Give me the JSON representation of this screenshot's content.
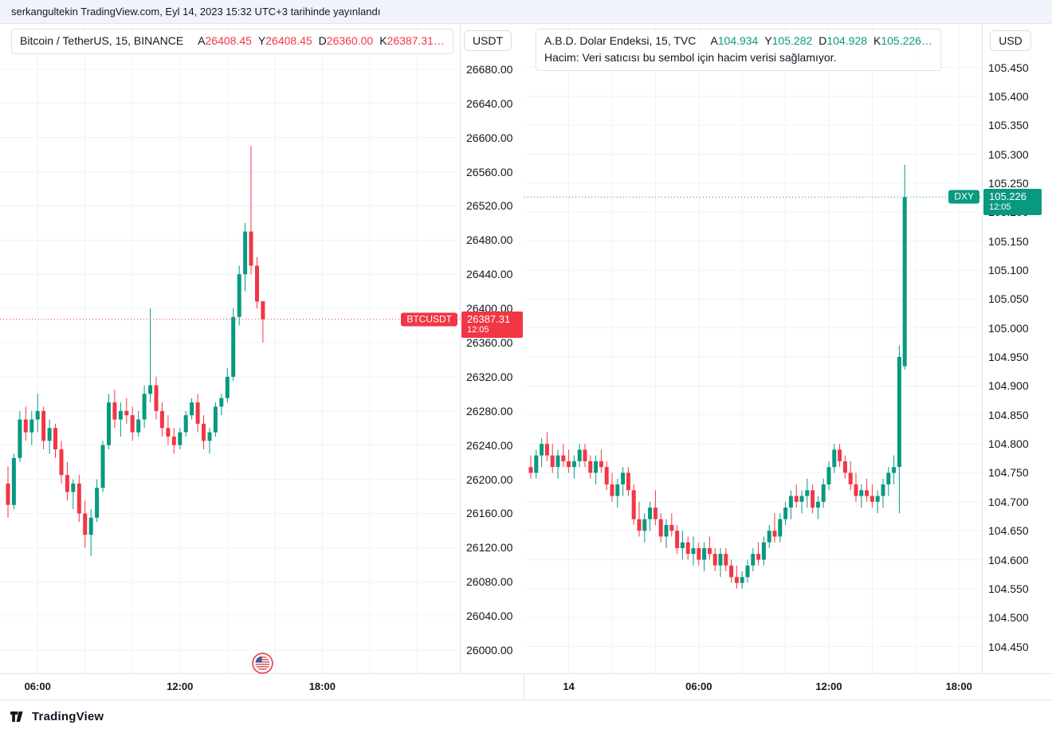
{
  "topbar": {
    "attribution": "serkangultekin TradingView.com, Eyl 14, 2023 15:32 UTC+3 tarihinde yayınlandı"
  },
  "footer": {
    "brand": "TradingView"
  },
  "chart_data": [
    {
      "type": "candlestick",
      "title": "Bitcoin / TetherUS, 15, BINANCE",
      "symbol": "BTCUSDT",
      "interval": "15",
      "exchange": "BINANCE",
      "currency": "USDT",
      "legend": {
        "open_label": "A",
        "open": "26408.45",
        "high_label": "Y",
        "high": "26408.45",
        "low_label": "D",
        "low": "26360.00",
        "close_label": "K",
        "close": "26387.31…"
      },
      "price_label": {
        "symbol": "BTCUSDT",
        "price": "26387.31",
        "time": "12:05"
      },
      "last_price": 26387.31,
      "colors": {
        "up": "#089981",
        "down": "#f23645",
        "accent": "#f23645"
      },
      "ylim": [
        25973,
        26733
      ],
      "grid": true,
      "y_ticks": [
        "26680.00",
        "26640.00",
        "26600.00",
        "26560.00",
        "26520.00",
        "26480.00",
        "26440.00",
        "26400.00",
        "26360.00",
        "26320.00",
        "26280.00",
        "26240.00",
        "26200.00",
        "26160.00",
        "26120.00",
        "26080.00",
        "26040.00",
        "26000.00"
      ],
      "x_ticks": [
        {
          "label": "06:00",
          "index": 5
        },
        {
          "label": "12:00",
          "index": 29
        },
        {
          "label": "18:00",
          "index": 53
        }
      ],
      "candles": [
        [
          26195,
          26215,
          26155,
          26170
        ],
        [
          26170,
          26230,
          26165,
          26225
        ],
        [
          26225,
          26280,
          26220,
          26270
        ],
        [
          26270,
          26285,
          26245,
          26255
        ],
        [
          26255,
          26280,
          26240,
          26270
        ],
        [
          26270,
          26300,
          26255,
          26280
        ],
        [
          26280,
          26285,
          26235,
          26245
        ],
        [
          26245,
          26270,
          26230,
          26260
        ],
        [
          26260,
          26265,
          26225,
          26235
        ],
        [
          26235,
          26245,
          26195,
          26205
        ],
        [
          26205,
          26220,
          26175,
          26185
        ],
        [
          26185,
          26200,
          26165,
          26195
        ],
        [
          26195,
          26205,
          26150,
          26160
        ],
        [
          26160,
          26175,
          26120,
          26135
        ],
        [
          26135,
          26165,
          26110,
          26155
        ],
        [
          26155,
          26200,
          26150,
          26190
        ],
        [
          26190,
          26245,
          26185,
          26240
        ],
        [
          26240,
          26300,
          26235,
          26290
        ],
        [
          26290,
          26305,
          26260,
          26270
        ],
        [
          26270,
          26290,
          26250,
          26280
        ],
        [
          26280,
          26295,
          26265,
          26275
        ],
        [
          26275,
          26285,
          26245,
          26255
        ],
        [
          26255,
          26280,
          26250,
          26270
        ],
        [
          26270,
          26310,
          26260,
          26300
        ],
        [
          26300,
          26400,
          26290,
          26310
        ],
        [
          26310,
          26320,
          26270,
          26280
        ],
        [
          26280,
          26290,
          26250,
          26260
        ],
        [
          26260,
          26275,
          26240,
          26250
        ],
        [
          26250,
          26260,
          26230,
          26240
        ],
        [
          26240,
          26260,
          26235,
          26255
        ],
        [
          26255,
          26280,
          26250,
          26275
        ],
        [
          26275,
          26295,
          26270,
          26290
        ],
        [
          26290,
          26300,
          26255,
          26265
        ],
        [
          26265,
          26275,
          26235,
          26245
        ],
        [
          26245,
          26260,
          26230,
          26255
        ],
        [
          26255,
          26290,
          26250,
          26285
        ],
        [
          26285,
          26300,
          26275,
          26295
        ],
        [
          26295,
          26330,
          26290,
          26320
        ],
        [
          26320,
          26400,
          26315,
          26390
        ],
        [
          26390,
          26450,
          26380,
          26440
        ],
        [
          26440,
          26500,
          26420,
          26490
        ],
        [
          26490,
          26590,
          26440,
          26450
        ],
        [
          26450,
          26460,
          26400,
          26408
        ],
        [
          26408.45,
          26408.45,
          26360,
          26387.31
        ]
      ]
    },
    {
      "type": "candlestick",
      "title": "A.B.D. Dolar Endeksi, 15, TVC",
      "subtitle": "Hacim: Veri satıcısı bu sembol için hacim verisi sağlamıyor.",
      "symbol": "DXY",
      "interval": "15",
      "exchange": "TVC",
      "currency": "USD",
      "legend": {
        "open_label": "A",
        "open": "104.934",
        "high_label": "Y",
        "high": "105.282",
        "low_label": "D",
        "low": "104.928",
        "close_label": "K",
        "close": "105.226…"
      },
      "price_label": {
        "symbol": "DXY",
        "price": "105.226",
        "time": "12:05"
      },
      "last_price": 105.226,
      "colors": {
        "up": "#089981",
        "down": "#f23645",
        "accent": "#089981"
      },
      "ylim": [
        104.404,
        105.525
      ],
      "grid": true,
      "y_ticks": [
        "105.450",
        "105.400",
        "105.350",
        "105.300",
        "105.250",
        "105.200",
        "105.150",
        "105.100",
        "105.050",
        "105.000",
        "104.950",
        "104.900",
        "104.850",
        "104.800",
        "104.750",
        "104.700",
        "104.650",
        "104.600",
        "104.550",
        "104.500",
        "104.450"
      ],
      "x_ticks": [
        {
          "label": "14",
          "index": 7
        },
        {
          "label": "06:00",
          "index": 31
        },
        {
          "label": "12:00",
          "index": 55
        },
        {
          "label": "18:00",
          "index": 79
        }
      ],
      "candles": [
        [
          104.76,
          104.78,
          104.74,
          104.75
        ],
        [
          104.75,
          104.79,
          104.74,
          104.78
        ],
        [
          104.78,
          104.81,
          104.76,
          104.8
        ],
        [
          104.8,
          104.82,
          104.77,
          104.78
        ],
        [
          104.78,
          104.8,
          104.75,
          104.76
        ],
        [
          104.76,
          104.79,
          104.74,
          104.78
        ],
        [
          104.78,
          104.8,
          104.76,
          104.77
        ],
        [
          104.77,
          104.79,
          104.75,
          104.76
        ],
        [
          104.76,
          104.78,
          104.74,
          104.77
        ],
        [
          104.77,
          104.8,
          104.76,
          104.79
        ],
        [
          104.79,
          104.8,
          104.76,
          104.77
        ],
        [
          104.77,
          104.78,
          104.74,
          104.75
        ],
        [
          104.75,
          104.78,
          104.73,
          104.77
        ],
        [
          104.77,
          104.79,
          104.75,
          104.76
        ],
        [
          104.76,
          104.77,
          104.72,
          104.73
        ],
        [
          104.73,
          104.75,
          104.7,
          104.71
        ],
        [
          104.71,
          104.74,
          104.69,
          104.73
        ],
        [
          104.73,
          104.76,
          104.71,
          104.75
        ],
        [
          104.75,
          104.76,
          104.71,
          104.72
        ],
        [
          104.72,
          104.73,
          104.66,
          104.67
        ],
        [
          104.67,
          104.7,
          104.64,
          104.65
        ],
        [
          104.65,
          104.68,
          104.63,
          104.67
        ],
        [
          104.67,
          104.7,
          104.65,
          104.69
        ],
        [
          104.69,
          104.72,
          104.66,
          104.67
        ],
        [
          104.67,
          104.68,
          104.63,
          104.64
        ],
        [
          104.64,
          104.67,
          104.62,
          104.66
        ],
        [
          104.66,
          104.68,
          104.64,
          104.65
        ],
        [
          104.65,
          104.66,
          104.61,
          104.62
        ],
        [
          104.62,
          104.65,
          104.6,
          104.63
        ],
        [
          104.63,
          104.64,
          104.6,
          104.61
        ],
        [
          104.61,
          104.64,
          104.59,
          104.62
        ],
        [
          104.62,
          104.63,
          104.59,
          104.6
        ],
        [
          104.6,
          104.63,
          104.58,
          104.62
        ],
        [
          104.62,
          104.64,
          104.6,
          104.61
        ],
        [
          104.61,
          104.62,
          104.58,
          104.59
        ],
        [
          104.59,
          104.62,
          104.57,
          104.61
        ],
        [
          104.61,
          104.62,
          104.58,
          104.59
        ],
        [
          104.59,
          104.6,
          104.56,
          104.57
        ],
        [
          104.57,
          104.59,
          104.55,
          104.56
        ],
        [
          104.56,
          104.58,
          104.55,
          104.57
        ],
        [
          104.57,
          104.6,
          104.56,
          104.59
        ],
        [
          104.59,
          104.62,
          104.58,
          104.61
        ],
        [
          104.61,
          104.63,
          104.59,
          104.6
        ],
        [
          104.6,
          104.64,
          104.59,
          104.63
        ],
        [
          104.63,
          104.66,
          104.62,
          104.65
        ],
        [
          104.65,
          104.68,
          104.63,
          104.64
        ],
        [
          104.64,
          104.68,
          104.63,
          104.67
        ],
        [
          104.67,
          104.7,
          104.66,
          104.69
        ],
        [
          104.69,
          104.72,
          104.67,
          104.71
        ],
        [
          104.71,
          104.73,
          104.69,
          104.7
        ],
        [
          104.7,
          104.72,
          104.68,
          104.71
        ],
        [
          104.71,
          104.74,
          104.69,
          104.72
        ],
        [
          104.72,
          104.73,
          104.68,
          104.69
        ],
        [
          104.69,
          104.71,
          104.67,
          104.7
        ],
        [
          104.7,
          104.74,
          104.69,
          104.73
        ],
        [
          104.73,
          104.77,
          104.72,
          104.76
        ],
        [
          104.76,
          104.8,
          104.75,
          104.79
        ],
        [
          104.79,
          104.8,
          104.76,
          104.77
        ],
        [
          104.77,
          104.78,
          104.74,
          104.75
        ],
        [
          104.75,
          104.77,
          104.72,
          104.73
        ],
        [
          104.73,
          104.75,
          104.7,
          104.71
        ],
        [
          104.71,
          104.73,
          104.69,
          104.72
        ],
        [
          104.72,
          104.74,
          104.7,
          104.71
        ],
        [
          104.71,
          104.73,
          104.69,
          104.7
        ],
        [
          104.7,
          104.72,
          104.68,
          104.71
        ],
        [
          104.71,
          104.74,
          104.69,
          104.73
        ],
        [
          104.73,
          104.76,
          104.71,
          104.75
        ],
        [
          104.75,
          104.78,
          104.73,
          104.76
        ],
        [
          104.76,
          104.97,
          104.68,
          104.95
        ],
        [
          104.934,
          105.282,
          104.928,
          105.226
        ]
      ]
    }
  ]
}
